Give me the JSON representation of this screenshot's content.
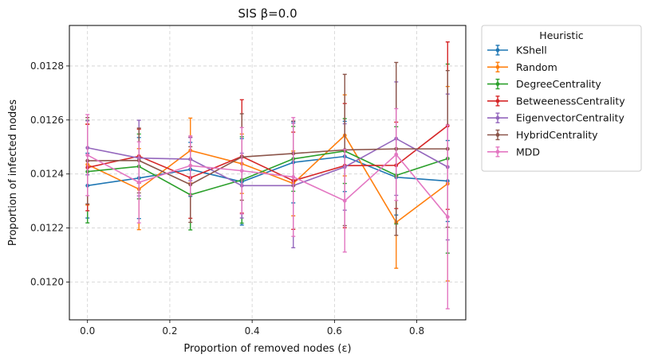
{
  "chart_data": {
    "type": "line",
    "title": "SIS β=0.0",
    "xlabel": "Proportion of removed nodes (ε)",
    "ylabel": "Proportion of infected nodes",
    "xlim": [
      -0.044,
      0.919
    ],
    "ylim": [
      0.01186,
      0.01295
    ],
    "xticks": [
      0.0,
      0.2,
      0.4,
      0.6,
      0.8
    ],
    "xtick_labels": [
      "0.0",
      "0.2",
      "0.4",
      "0.6",
      "0.8"
    ],
    "yticks": [
      0.012,
      0.0122,
      0.0124,
      0.0126,
      0.0128
    ],
    "ytick_labels": [
      "0.0120",
      "0.0122",
      "0.0124",
      "0.0126",
      "0.0128"
    ],
    "grid": true,
    "legend": {
      "title": "Heuristic",
      "placement": "outside-right"
    },
    "x": [
      0.0,
      0.125,
      0.25,
      0.375,
      0.5,
      0.625,
      0.75,
      0.875
    ],
    "series": [
      {
        "name": "KShell",
        "color": "#1f77b4",
        "values": [
          0.012357,
          0.012385,
          0.012417,
          0.012371,
          0.012443,
          0.012465,
          0.012388,
          0.012374
        ],
        "errors": [
          0.00012,
          0.00015,
          0.0001,
          0.00016,
          0.00015,
          0.00013,
          0.00014,
          0.00015
        ]
      },
      {
        "name": "Random",
        "color": "#ff7f0e",
        "values": [
          0.012435,
          0.012344,
          0.012487,
          0.012438,
          0.012365,
          0.012543,
          0.012221,
          0.012364
        ],
        "errors": [
          0.00015,
          0.00015,
          0.00012,
          0.00011,
          0.00012,
          0.00015,
          0.00017,
          0.00036
        ]
      },
      {
        "name": "DegreeCentrality",
        "color": "#2ca02c",
        "values": [
          0.012409,
          0.012428,
          0.012323,
          0.012378,
          0.012456,
          0.012485,
          0.012395,
          0.012457
        ],
        "errors": [
          0.00019,
          0.00012,
          0.00013,
          0.00016,
          0.00012,
          0.00012,
          0.00018,
          0.00035
        ]
      },
      {
        "name": "BetweenessCentrality",
        "color": "#d62728",
        "values": [
          0.012424,
          0.012466,
          0.012386,
          0.012465,
          0.012375,
          0.012431,
          0.012432,
          0.012579
        ],
        "errors": [
          0.00016,
          0.0001,
          0.00015,
          0.00021,
          0.00018,
          0.00023,
          0.00016,
          0.00031
        ]
      },
      {
        "name": "EigenvectorCentrality",
        "color": "#9467bd",
        "values": [
          0.012497,
          0.012459,
          0.012455,
          0.012357,
          0.012357,
          0.012426,
          0.012531,
          0.012426
        ],
        "errors": [
          0.0001,
          0.00014,
          8e-05,
          0.00012,
          0.00023,
          0.00016,
          0.00021,
          0.00027
        ]
      },
      {
        "name": "HybridCentrality",
        "color": "#8c564b",
        "values": [
          0.012449,
          0.01245,
          0.012361,
          0.012463,
          0.012476,
          0.012489,
          0.012493,
          0.012493
        ],
        "errors": [
          0.00016,
          0.00012,
          0.00014,
          0.00016,
          0.00012,
          0.00028,
          0.00032,
          0.00029
        ]
      },
      {
        "name": "MDD",
        "color": "#e377c2",
        "values": [
          0.01247,
          0.012369,
          0.012431,
          0.012412,
          0.012389,
          0.012301,
          0.012472,
          0.012241
        ],
        "errors": [
          0.00015,
          0.00015,
          0.00011,
          0.00016,
          0.00022,
          0.00019,
          0.00017,
          0.00034
        ]
      }
    ]
  }
}
